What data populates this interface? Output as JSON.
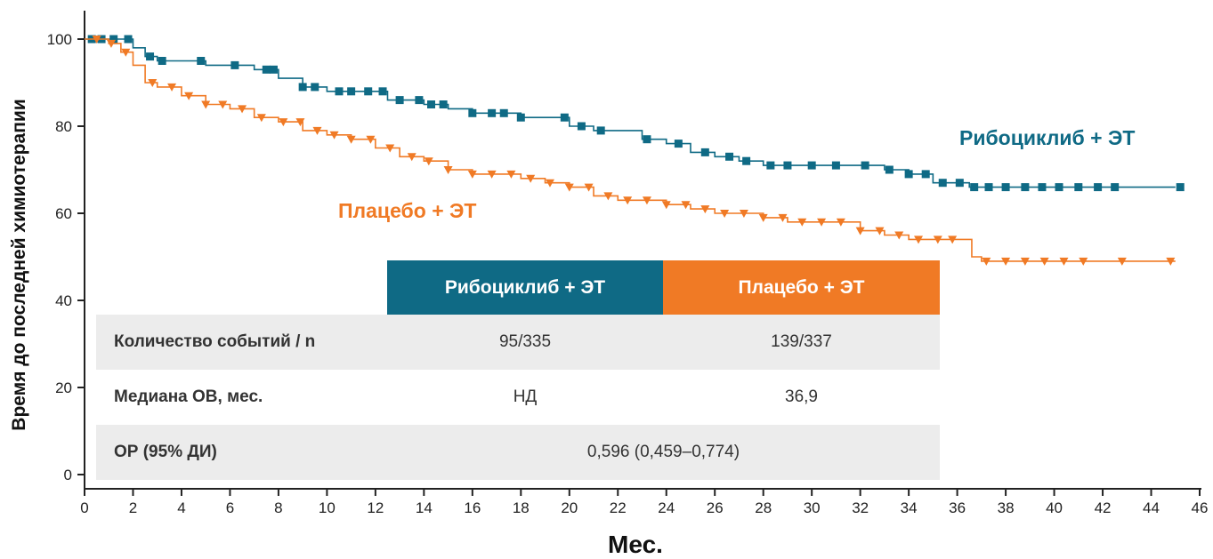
{
  "chart_data": {
    "type": "line",
    "title": "",
    "xlabel": "Мес.",
    "ylabel": "Время до последней химиотерапии",
    "xlim": [
      0,
      46
    ],
    "ylim": [
      0,
      100
    ],
    "x_ticks": [
      "0",
      "2",
      "4",
      "6",
      "8",
      "10",
      "12",
      "14",
      "16",
      "18",
      "20",
      "22",
      "24",
      "26",
      "28",
      "30",
      "32",
      "34",
      "36",
      "38",
      "40",
      "42",
      "44",
      "46"
    ],
    "y_ticks": [
      "0",
      "20",
      "40",
      "60",
      "80",
      "100"
    ],
    "grid": false,
    "series": [
      {
        "name": "Рибоциклиб + ЭТ",
        "color": "#0f6a85",
        "marker": "square",
        "x": [
          0,
          1,
          2,
          2.5,
          3,
          5,
          7,
          8,
          9,
          10,
          12,
          12.5,
          14,
          15,
          16,
          18,
          19,
          20,
          21,
          23,
          24,
          25,
          26,
          27,
          28,
          30,
          32,
          33,
          34,
          35,
          36,
          36.5,
          38,
          40,
          42,
          44,
          45
        ],
        "y": [
          100,
          100,
          98,
          96,
          95,
          94,
          93,
          91,
          89,
          88,
          88,
          86,
          85,
          84,
          83,
          82,
          82,
          80,
          79,
          77,
          76,
          74,
          73,
          72,
          71,
          71,
          71,
          70,
          69,
          67,
          67,
          66,
          66,
          66,
          66,
          66,
          66
        ],
        "censor_x": [
          0.3,
          0.7,
          1.2,
          1.8,
          2.7,
          3.2,
          4.8,
          6.2,
          7.5,
          7.8,
          9,
          9.5,
          10.5,
          11,
          11.7,
          12.3,
          13,
          13.8,
          14.3,
          14.8,
          16,
          16.8,
          17.3,
          18,
          19.8,
          20.5,
          21.3,
          23.2,
          24.5,
          25.6,
          26.6,
          27.3,
          28.3,
          29,
          30,
          31,
          32.2,
          33.2,
          34,
          34.7,
          35.4,
          36.1,
          36.7,
          37.3,
          38,
          38.8,
          39.5,
          40.2,
          41,
          41.8,
          42.5,
          45.2
        ],
        "end_label": "Рибоциклиб + ЭТ"
      },
      {
        "name": "Плацебо + ЭТ",
        "color": "#f07a25",
        "marker": "triangle-down",
        "x": [
          0,
          1,
          1.5,
          2,
          2.5,
          3,
          4,
          5,
          6,
          7,
          8,
          9,
          10,
          11,
          12,
          13,
          14,
          15,
          16,
          17,
          18,
          19,
          20,
          21,
          22,
          23,
          24,
          25,
          26,
          27,
          28,
          29,
          30,
          31,
          32,
          33,
          34,
          35,
          36,
          36.6,
          37,
          38,
          40,
          42,
          44,
          45
        ],
        "y": [
          100,
          99,
          97,
          94,
          90,
          89,
          87,
          85,
          84,
          82,
          81,
          79,
          78,
          77,
          75,
          73,
          72,
          70,
          69,
          69,
          68,
          67,
          66,
          64,
          63,
          63,
          62,
          61,
          60,
          60,
          59,
          58,
          58,
          58,
          56,
          55,
          54,
          54,
          54,
          50,
          49,
          49,
          49,
          49,
          49,
          49
        ],
        "censor_x": [
          0.5,
          1.1,
          1.7,
          2.8,
          3.6,
          4.3,
          5,
          5.7,
          6.5,
          7.3,
          8.2,
          8.9,
          9.6,
          10.3,
          11,
          11.8,
          12.6,
          13.5,
          14.2,
          15,
          16,
          16.8,
          17.6,
          18.4,
          19.2,
          20,
          20.8,
          21.6,
          22.4,
          23.2,
          24,
          24.8,
          25.6,
          26.4,
          27.2,
          28,
          28.8,
          29.6,
          30.4,
          31.2,
          32,
          32.8,
          33.6,
          34.4,
          35.2,
          35.8,
          37.2,
          38,
          38.8,
          39.6,
          40.4,
          41.2,
          42.8,
          44.8
        ],
        "end_label": "Плацебо + ЭТ"
      }
    ],
    "table": {
      "columns": [
        "Рибоциклиб + ЭТ",
        "Плацебо + ЭТ"
      ],
      "rows": [
        {
          "label": "Количество событий / n",
          "values": [
            "95/335",
            "139/337"
          ]
        },
        {
          "label": "Медиана ОВ, мес.",
          "values": [
            "НД",
            "36,9"
          ]
        },
        {
          "label": "ОР (95% ДИ)",
          "values": [
            "0,596 (0,459–0,774)"
          ]
        }
      ]
    }
  }
}
